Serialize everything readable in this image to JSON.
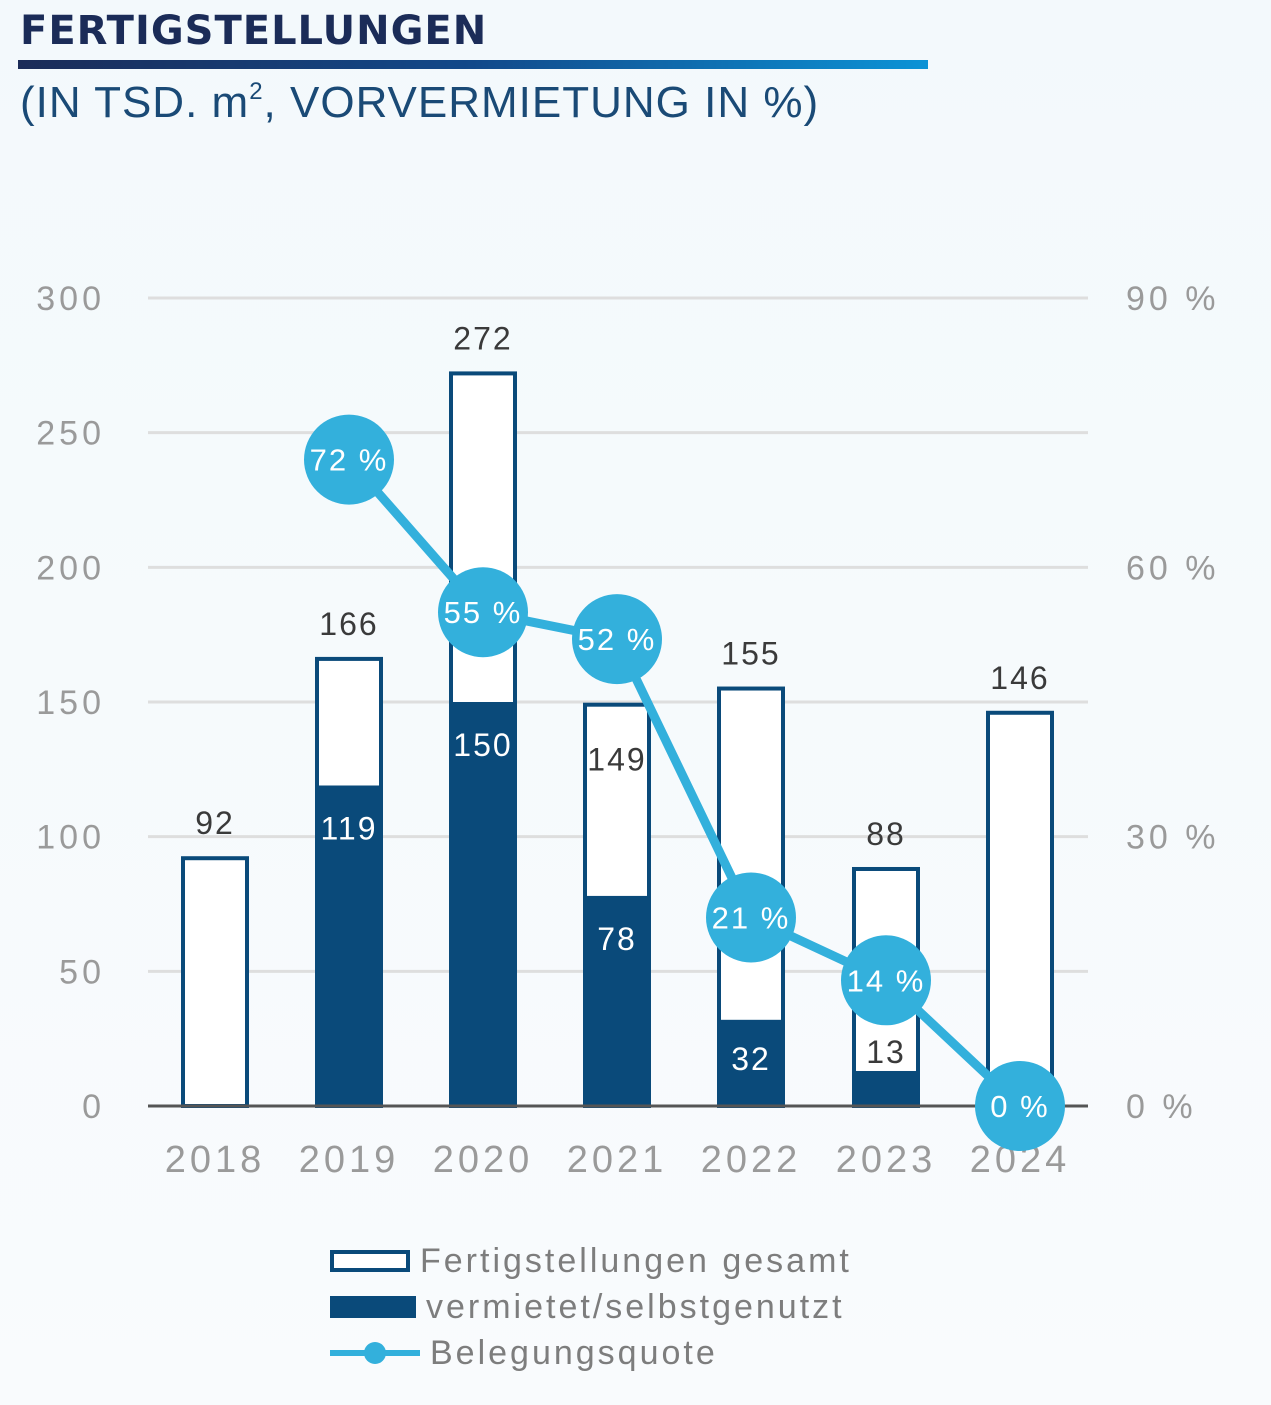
{
  "header": {
    "title": "FERTIGSTELLUNGEN",
    "subtitle_pre": "(IN TSD. m",
    "subtitle_sup": "2",
    "subtitle_post": ", VORVERMIETUNG IN %)"
  },
  "colors": {
    "total_fill": "#ffffff",
    "bar_stroke": "#0a4a7a",
    "rented": "#0a4a7a",
    "line": "#33b0dc",
    "grid": "#dedede",
    "axis": "#555555",
    "tick_text": "#9a9a9a",
    "label_dark": "#3a3a3a"
  },
  "chart_data": {
    "type": "bar",
    "categories": [
      "2018",
      "2019",
      "2020",
      "2021",
      "2022",
      "2023",
      "2024"
    ],
    "series": [
      {
        "name": "Fertigstellungen gesamt",
        "values": [
          92,
          166,
          272,
          149,
          155,
          88,
          146
        ]
      },
      {
        "name": "vermietet/selbstgenutzt",
        "values": [
          null,
          119,
          150,
          78,
          32,
          13,
          null
        ]
      },
      {
        "name": "Belegungsquote",
        "type": "line",
        "axis": "right",
        "values": [
          null,
          72,
          55,
          52,
          21,
          14,
          0
        ]
      }
    ],
    "total_labels": [
      "92",
      "166",
      "272",
      "149",
      "155",
      "88",
      "146"
    ],
    "rented_labels": [
      "",
      "119",
      "150",
      "78",
      "32",
      "13",
      ""
    ],
    "rate_labels": [
      "",
      "72 %",
      "55 %",
      "52 %",
      "21 %",
      "14 %",
      "0 %"
    ],
    "ylim": [
      0,
      300
    ],
    "yticks": [
      0,
      50,
      100,
      150,
      200,
      250,
      300
    ],
    "ytick_labels": [
      "0",
      "50",
      "100",
      "150",
      "200",
      "250",
      "300"
    ],
    "y2lim": [
      0,
      90
    ],
    "y2ticks": [
      0,
      30,
      60,
      90
    ],
    "y2tick_labels": [
      "0 %",
      "30 %",
      "60 %",
      "90 %"
    ],
    "grid": true,
    "legend_position": "bottom"
  },
  "legend": [
    {
      "label": "Fertigstellungen gesamt"
    },
    {
      "label": "vermietet/selbstgenutzt"
    },
    {
      "label": "Belegungsquote"
    }
  ]
}
